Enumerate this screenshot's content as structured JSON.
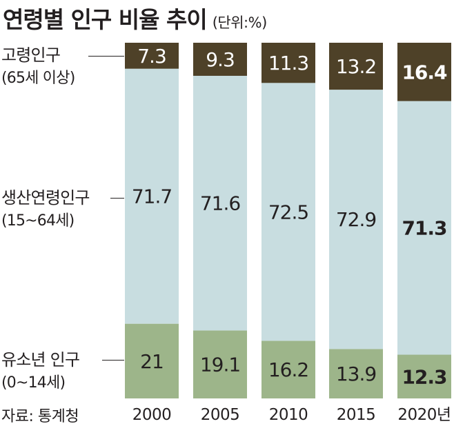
{
  "chart_data": {
    "type": "bar",
    "stacked": true,
    "title": "연령별 인구 비율 추이",
    "unit": "(단위:%)",
    "categories": [
      "2000",
      "2005",
      "2010",
      "2015",
      "2020년"
    ],
    "series": [
      {
        "name": "유소년 인구",
        "sub": "(0~14세)",
        "values": [
          21,
          19.1,
          16.2,
          13.9,
          12.3
        ],
        "labels": [
          "21",
          "19.1",
          "16.2",
          "13.9",
          "12.3"
        ],
        "color": "#9db58a"
      },
      {
        "name": "생산연령인구",
        "sub": "(15~64세)",
        "values": [
          71.7,
          71.6,
          72.5,
          72.9,
          71.3
        ],
        "labels": [
          "71.7",
          "71.6",
          "72.5",
          "72.9",
          "71.3"
        ],
        "color": "#c8dde0"
      },
      {
        "name": "고령인구",
        "sub": "(65세 이상)",
        "values": [
          7.3,
          9.3,
          11.3,
          13.2,
          16.4
        ],
        "labels": [
          "7.3",
          "9.3",
          "11.3",
          "13.2",
          "16.4"
        ],
        "color": "#4e4128"
      }
    ],
    "ylim": [
      0,
      100
    ],
    "source": "자료: 통계청"
  },
  "colors": {
    "text": "#231f20",
    "label_on_dark": "#ffffff"
  }
}
